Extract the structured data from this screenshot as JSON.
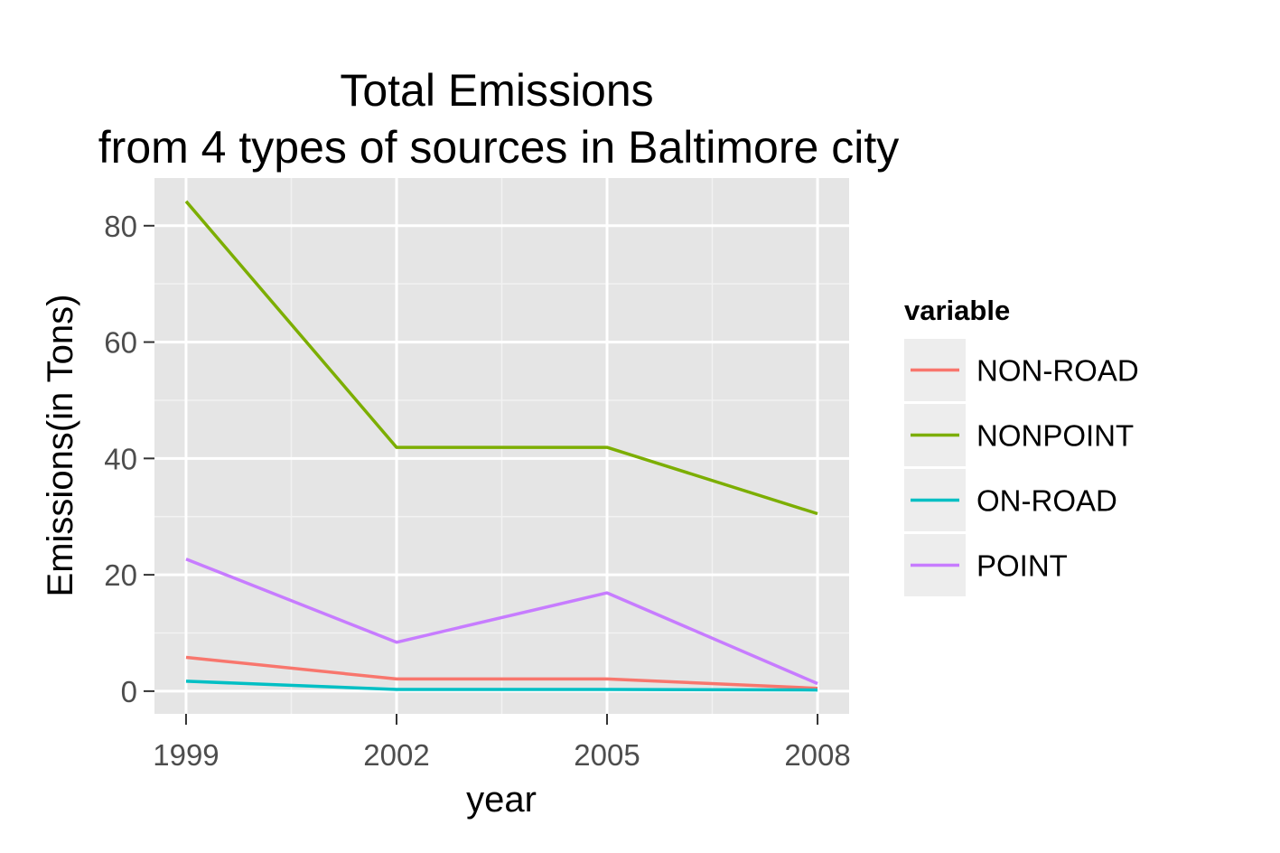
{
  "chart_data": {
    "type": "line",
    "title_line1": "Total Emissions",
    "title_line2": "from 4 types of sources in Baltimore city",
    "xlabel": "year",
    "ylabel": "Emissions(in Tons)",
    "x": [
      1999,
      2002,
      2005,
      2008
    ],
    "xticks": [
      "1999",
      "2002",
      "2005",
      "2008"
    ],
    "yticks": [
      0,
      20,
      40,
      60,
      80
    ],
    "ylim": [
      -3.9,
      88.2
    ],
    "xlim": [
      1998.55,
      2008.45
    ],
    "grid": true,
    "legend": {
      "title": "variable",
      "placement": "right"
    },
    "series": [
      {
        "name": "NON-ROAD",
        "color": "#F8766D",
        "values": [
          5.8,
          2.1,
          2.1,
          0.5
        ]
      },
      {
        "name": "NONPOINT",
        "color": "#7CAE00",
        "values": [
          84.2,
          41.9,
          41.9,
          30.5
        ]
      },
      {
        "name": "ON-ROAD",
        "color": "#00BFC4",
        "values": [
          1.7,
          0.3,
          0.3,
          0.2
        ]
      },
      {
        "name": "POINT",
        "color": "#C77CFF",
        "values": [
          22.7,
          8.4,
          16.9,
          1.3
        ]
      }
    ]
  }
}
